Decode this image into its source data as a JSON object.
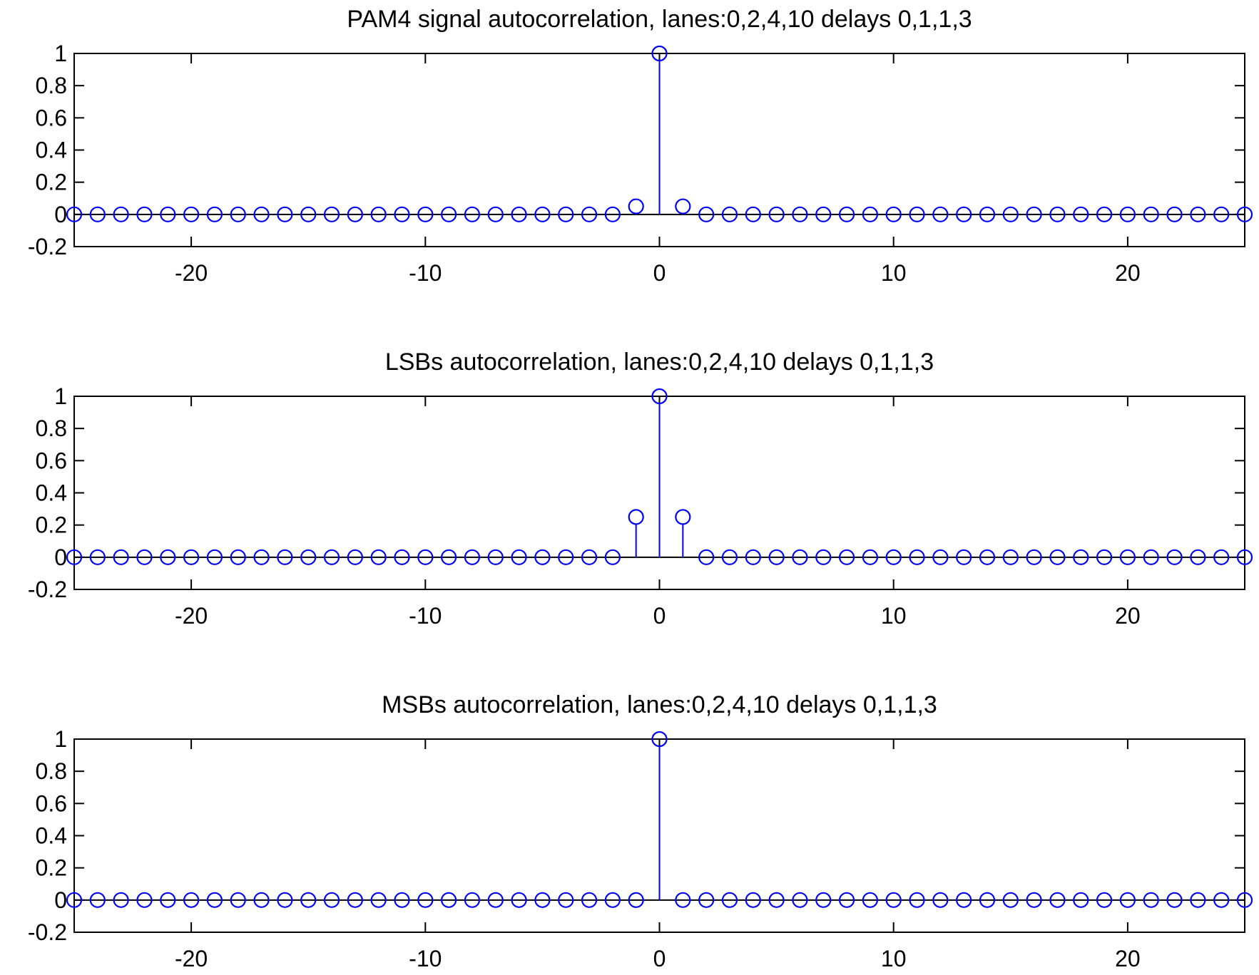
{
  "chart_data": [
    {
      "type": "stem",
      "title": "PAM4 signal autocorrelation, lanes:0,2,4,10 delays 0,1,1,3",
      "xlabel": "",
      "ylabel": "",
      "xlim": [
        -25,
        25
      ],
      "ylim": [
        -0.2,
        1
      ],
      "xticks": [
        -20,
        -10,
        0,
        10,
        20
      ],
      "xtick_labels": [
        "-20",
        "-10",
        "0",
        "10",
        "20"
      ],
      "yticks": [
        -0.2,
        0,
        0.2,
        0.4,
        0.6,
        0.8,
        1
      ],
      "ytick_labels": [
        "-0.2",
        "0",
        "0.2",
        "0.4",
        "0.6",
        "0.8",
        "1"
      ],
      "grid": false,
      "series": [
        {
          "color": "#0000ff",
          "x": [
            -25,
            -24,
            -23,
            -22,
            -21,
            -20,
            -19,
            -18,
            -17,
            -16,
            -15,
            -14,
            -13,
            -12,
            -11,
            -10,
            -9,
            -8,
            -7,
            -6,
            -5,
            -4,
            -3,
            -2,
            -1,
            0,
            1,
            2,
            3,
            4,
            5,
            6,
            7,
            8,
            9,
            10,
            11,
            12,
            13,
            14,
            15,
            16,
            17,
            18,
            19,
            20,
            21,
            22,
            23,
            24,
            25
          ],
          "y": [
            0,
            0,
            0,
            0,
            0,
            0,
            0,
            0,
            0,
            0,
            0,
            0,
            0,
            0,
            0,
            0,
            0,
            0,
            0,
            0,
            0,
            0,
            0,
            0,
            0.05,
            1,
            0.05,
            0,
            0,
            0,
            0,
            0,
            0,
            0,
            0,
            0,
            0,
            0,
            0,
            0,
            0,
            0,
            0,
            0,
            0,
            0,
            0,
            0,
            0,
            0,
            0
          ]
        }
      ]
    },
    {
      "type": "stem",
      "title": "LSBs autocorrelation, lanes:0,2,4,10 delays 0,1,1,3",
      "xlabel": "",
      "ylabel": "",
      "xlim": [
        -25,
        25
      ],
      "ylim": [
        -0.2,
        1
      ],
      "xticks": [
        -20,
        -10,
        0,
        10,
        20
      ],
      "xtick_labels": [
        "-20",
        "-10",
        "0",
        "10",
        "20"
      ],
      "yticks": [
        -0.2,
        0,
        0.2,
        0.4,
        0.6,
        0.8,
        1
      ],
      "ytick_labels": [
        "-0.2",
        "0",
        "0.2",
        "0.4",
        "0.6",
        "0.8",
        "1"
      ],
      "grid": false,
      "series": [
        {
          "color": "#0000ff",
          "x": [
            -25,
            -24,
            -23,
            -22,
            -21,
            -20,
            -19,
            -18,
            -17,
            -16,
            -15,
            -14,
            -13,
            -12,
            -11,
            -10,
            -9,
            -8,
            -7,
            -6,
            -5,
            -4,
            -3,
            -2,
            -1,
            0,
            1,
            2,
            3,
            4,
            5,
            6,
            7,
            8,
            9,
            10,
            11,
            12,
            13,
            14,
            15,
            16,
            17,
            18,
            19,
            20,
            21,
            22,
            23,
            24,
            25
          ],
          "y": [
            0,
            0,
            0,
            0,
            0,
            0,
            0,
            0,
            0,
            0,
            0,
            0,
            0,
            0,
            0,
            0,
            0,
            0,
            0,
            0,
            0,
            0,
            0,
            0,
            0.25,
            1,
            0.25,
            0,
            0,
            0,
            0,
            0,
            0,
            0,
            0,
            0,
            0,
            0,
            0,
            0,
            0,
            0,
            0,
            0,
            0,
            0,
            0,
            0,
            0,
            0,
            0
          ]
        }
      ]
    },
    {
      "type": "stem",
      "title": "MSBs autocorrelation, lanes:0,2,4,10 delays 0,1,1,3",
      "xlabel": "",
      "ylabel": "",
      "xlim": [
        -25,
        25
      ],
      "ylim": [
        -0.2,
        1
      ],
      "xticks": [
        -20,
        -10,
        0,
        10,
        20
      ],
      "xtick_labels": [
        "-20",
        "-10",
        "0",
        "10",
        "20"
      ],
      "yticks": [
        -0.2,
        0,
        0.2,
        0.4,
        0.6,
        0.8,
        1
      ],
      "ytick_labels": [
        "-0.2",
        "0",
        "0.2",
        "0.4",
        "0.6",
        "0.8",
        "1"
      ],
      "grid": false,
      "series": [
        {
          "color": "#0000ff",
          "x": [
            -25,
            -24,
            -23,
            -22,
            -21,
            -20,
            -19,
            -18,
            -17,
            -16,
            -15,
            -14,
            -13,
            -12,
            -11,
            -10,
            -9,
            -8,
            -7,
            -6,
            -5,
            -4,
            -3,
            -2,
            -1,
            0,
            1,
            2,
            3,
            4,
            5,
            6,
            7,
            8,
            9,
            10,
            11,
            12,
            13,
            14,
            15,
            16,
            17,
            18,
            19,
            20,
            21,
            22,
            23,
            24,
            25
          ],
          "y": [
            0,
            0,
            0,
            0,
            0,
            0,
            0,
            0,
            0,
            0,
            0,
            0,
            0,
            0,
            0,
            0,
            0,
            0,
            0,
            0,
            0,
            0,
            0,
            0,
            0,
            1,
            0,
            0,
            0,
            0,
            0,
            0,
            0,
            0,
            0,
            0,
            0,
            0,
            0,
            0,
            0,
            0,
            0,
            0,
            0,
            0,
            0,
            0,
            0,
            0,
            0
          ]
        }
      ]
    }
  ]
}
